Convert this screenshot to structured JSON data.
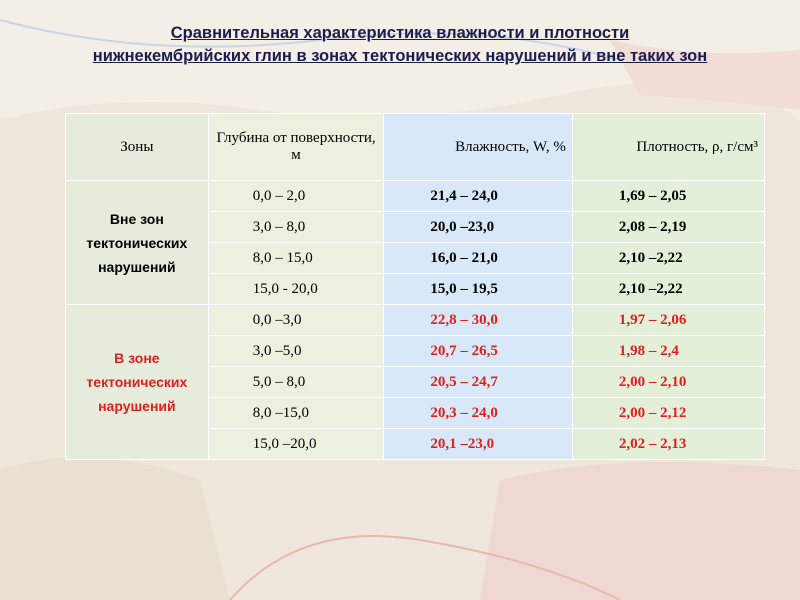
{
  "title_lines": [
    "Сравнительная характеристика влажности и плотности",
    "нижнекембрийских глин в зонах тектонических нарушений и вне таких зон"
  ],
  "table": {
    "header": [
      "Зоны",
      "Глубина от поверхности, м",
      "Влажность, W, %",
      "Плотность, ρ, г/см³"
    ],
    "groups": [
      {
        "zone": "Вне зон тектонических нарушений",
        "rows": [
          [
            "0,0 – 2,0",
            "21,4 – 24,0",
            "1,69 – 2,05"
          ],
          [
            "3,0 – 8,0",
            "20,0 –23,0",
            "2,08 – 2,19"
          ],
          [
            "8,0 – 15,0",
            "16,0 – 21,0",
            "2,10 –2,22"
          ],
          [
            "15,0 - 20,0",
            "15,0 – 19,5",
            "2,10 –2,22"
          ]
        ]
      },
      {
        "zone": "В зоне тектонических нарушений",
        "rows": [
          [
            "0,0 –3,0",
            "22,8 – 30,0",
            "1,97 – 2,06"
          ],
          [
            "3,0 –5,0",
            "20,7 – 26,5",
            "1,98 – 2,4"
          ],
          [
            "5,0 – 8,0",
            "20,5 – 24,7",
            "2,00 – 2,10"
          ],
          [
            "8,0 –15,0",
            "20,3 – 24,0",
            "2,00 – 2,12"
          ],
          [
            "15,0 –20,0",
            "20,1 –23,0",
            "2,02 – 2,13"
          ]
        ]
      }
    ]
  }
}
